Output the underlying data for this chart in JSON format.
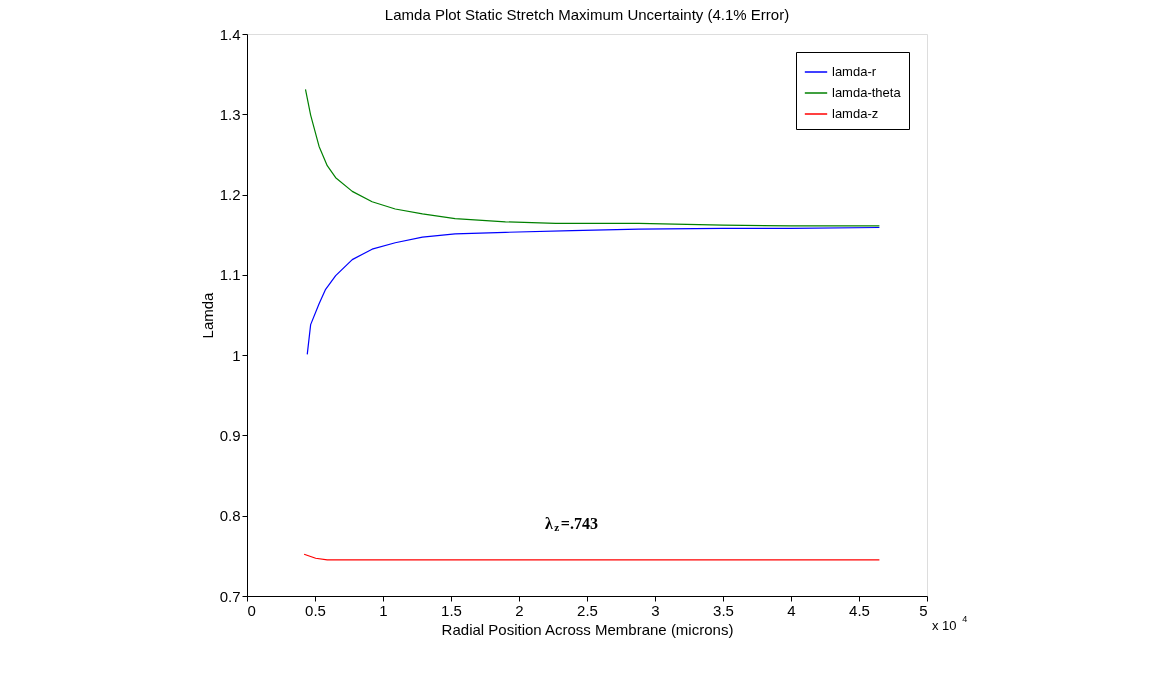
{
  "chart_data": {
    "type": "line",
    "title": "Lamda Plot Static Stretch Maximum Uncertainty (4.1% Error)",
    "xlabel": "Radial Position Across Membrane (microns)",
    "ylabel": "Lamda",
    "xlim": [
      0,
      5
    ],
    "xticks": [
      0,
      0.5,
      1,
      1.5,
      2,
      2.5,
      3,
      3.5,
      4,
      4.5,
      5
    ],
    "ylim": [
      0.7,
      1.4
    ],
    "yticks": [
      0.7,
      0.8,
      0.9,
      1,
      1.1,
      1.2,
      1.3,
      1.4
    ],
    "grid": false,
    "legend": "top right",
    "line_style": "solid",
    "marker": "none",
    "annotations": [
      "λ$_{z}$=.743",
      "x 10$^{4}$"
    ],
    "series": [
      {
        "name": "lamda-r",
        "color": "#0000ff",
        "x": [
          0.443,
          0.468,
          0.53,
          0.578,
          0.652,
          0.774,
          0.92,
          1.09,
          1.29,
          1.53,
          1.9,
          2.39,
          2.88,
          3.5,
          4.0,
          4.65
        ],
        "values": [
          1.001,
          1.038,
          1.064,
          1.082,
          1.099,
          1.119,
          1.132,
          1.14,
          1.147,
          1.151,
          1.153,
          1.155,
          1.157,
          1.158,
          1.158,
          1.159
        ]
      },
      {
        "name": "lamda-theta",
        "color": "#008000",
        "x": [
          0.43,
          0.468,
          0.53,
          0.59,
          0.652,
          0.774,
          0.92,
          1.09,
          1.29,
          1.53,
          1.9,
          2.27,
          2.88,
          3.5,
          4.0,
          4.65
        ],
        "values": [
          1.331,
          1.299,
          1.26,
          1.236,
          1.221,
          1.204,
          1.191,
          1.182,
          1.176,
          1.17,
          1.166,
          1.164,
          1.164,
          1.162,
          1.161,
          1.161
        ]
      },
      {
        "name": "lamda-z",
        "color": "#ff0000",
        "x": [
          0.42,
          0.505,
          0.59,
          1.0,
          2.0,
          3.0,
          4.0,
          4.65
        ],
        "values": [
          0.752,
          0.747,
          0.745,
          0.745,
          0.745,
          0.745,
          0.745,
          0.745
        ]
      }
    ]
  }
}
